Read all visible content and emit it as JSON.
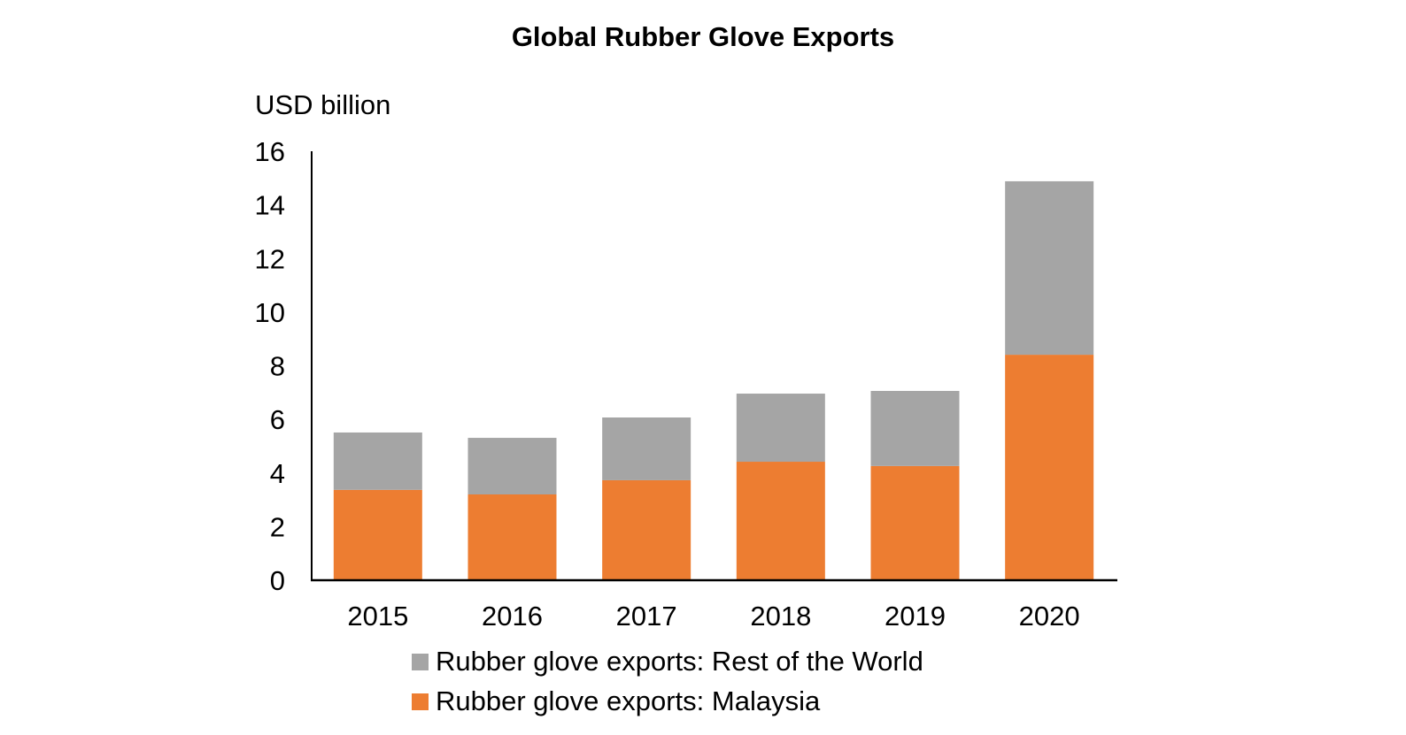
{
  "chart_data": {
    "type": "bar",
    "stacked": true,
    "title": "Global Rubber Glove Exports",
    "ylabel": "USD billion",
    "xlabel": "",
    "categories": [
      "2015",
      "2016",
      "2017",
      "2018",
      "2019",
      "2020"
    ],
    "ylim": [
      0,
      16
    ],
    "yticks": [
      0,
      2,
      4,
      6,
      8,
      10,
      12,
      14,
      16
    ],
    "grid": false,
    "legend_placement": "bottom",
    "series": [
      {
        "name": "Rubber glove exports: Malaysia",
        "color": "#ED7D31",
        "values": [
          3.37,
          3.2,
          3.73,
          4.42,
          4.26,
          8.41
        ]
      },
      {
        "name": "Rubber glove exports: Rest of the World",
        "color": "#A5A5A5",
        "values": [
          2.14,
          2.11,
          2.34,
          2.54,
          2.8,
          6.47
        ]
      }
    ]
  }
}
